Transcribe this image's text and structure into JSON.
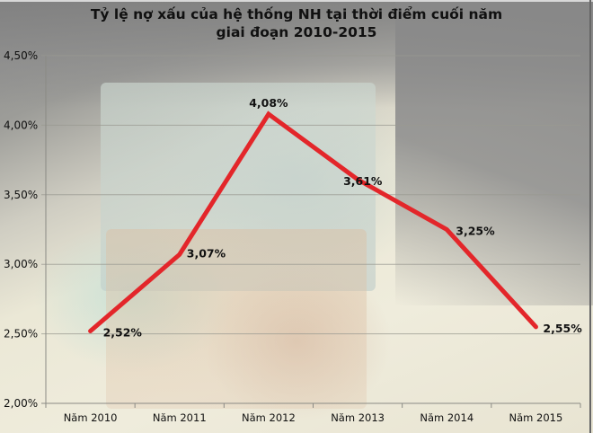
{
  "chart_data": {
    "type": "line",
    "title": "Tỷ lệ nợ xấu của hệ thống NH tại thời điểm cuối năm giai đoạn 2010-2015",
    "title_lines": [
      "Tỷ lệ nợ xấu của hệ thống NH tại thời điểm cuối năm",
      "giai đoạn 2010-2015"
    ],
    "xlabel": "",
    "ylabel": "",
    "categories": [
      "Năm 2010",
      "Năm 2011",
      "Năm 2012",
      "Năm 2013",
      "Năm 2014",
      "Năm 2015"
    ],
    "series": [
      {
        "name": "Tỷ lệ nợ xấu",
        "color": "#e3262a",
        "values": [
          2.52,
          3.07,
          4.08,
          3.61,
          3.25,
          2.55
        ],
        "labels": [
          "2,52%",
          "3,07%",
          "4,08%",
          "3,61%",
          "3,25%",
          "2,55%"
        ]
      }
    ],
    "ylim": [
      2.0,
      4.5
    ],
    "yticks": [
      4.5,
      4.0,
      3.5,
      3.0,
      2.5,
      2.0
    ],
    "ytick_labels": [
      "4,50%",
      "4,00%",
      "3,50%",
      "3,00%",
      "2,50%",
      "2,00%"
    ],
    "grid": true,
    "legend": "none",
    "background": "photo of stacked Vietnamese banknotes"
  }
}
